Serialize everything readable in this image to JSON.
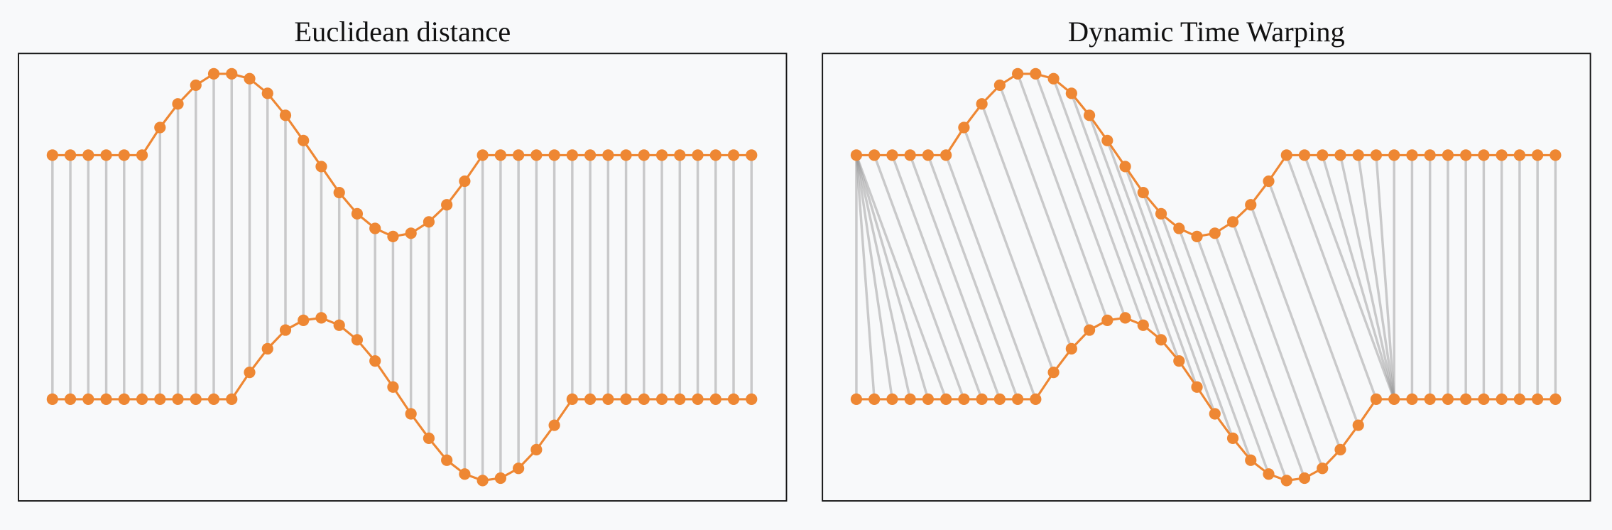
{
  "chart_data": [
    {
      "type": "line",
      "title": "Euclidean distance",
      "color": "#ee8733",
      "link_color": "#9a9a9a",
      "ylim": [
        -1.25,
        4.25
      ],
      "series": [
        {
          "values": [
            3,
            3,
            3,
            3,
            3,
            3,
            3.34,
            3.63,
            3.86,
            4.0,
            4.0,
            3.94,
            3.76,
            3.49,
            3.18,
            2.86,
            2.54,
            2.28,
            2.1,
            2.0,
            2.04,
            2.18,
            2.39,
            2.68,
            3,
            3,
            3,
            3,
            3,
            3,
            3,
            3,
            3,
            3,
            3,
            3,
            3,
            3,
            3,
            3
          ]
        },
        {
          "values": [
            0,
            0,
            0,
            0,
            0,
            0,
            0,
            0,
            0,
            0,
            0,
            0.33,
            0.62,
            0.85,
            0.97,
            1.0,
            0.91,
            0.73,
            0.47,
            0.15,
            -0.18,
            -0.48,
            -0.75,
            -0.92,
            -1.0,
            -0.97,
            -0.85,
            -0.62,
            -0.32,
            0,
            0,
            0,
            0,
            0,
            0,
            0,
            0,
            0,
            0,
            0
          ]
        }
      ],
      "path": [
        [
          0,
          0
        ],
        [
          1,
          1
        ],
        [
          2,
          2
        ],
        [
          3,
          3
        ],
        [
          4,
          4
        ],
        [
          5,
          5
        ],
        [
          6,
          6
        ],
        [
          7,
          7
        ],
        [
          8,
          8
        ],
        [
          9,
          9
        ],
        [
          10,
          10
        ],
        [
          11,
          11
        ],
        [
          12,
          12
        ],
        [
          13,
          13
        ],
        [
          14,
          14
        ],
        [
          15,
          15
        ],
        [
          16,
          16
        ],
        [
          17,
          17
        ],
        [
          18,
          18
        ],
        [
          19,
          19
        ],
        [
          20,
          20
        ],
        [
          21,
          21
        ],
        [
          22,
          22
        ],
        [
          23,
          23
        ],
        [
          24,
          24
        ],
        [
          25,
          25
        ],
        [
          26,
          26
        ],
        [
          27,
          27
        ],
        [
          28,
          28
        ],
        [
          29,
          29
        ],
        [
          30,
          30
        ],
        [
          31,
          31
        ],
        [
          32,
          32
        ],
        [
          33,
          33
        ],
        [
          34,
          34
        ],
        [
          35,
          35
        ],
        [
          36,
          36
        ],
        [
          37,
          37
        ],
        [
          38,
          38
        ],
        [
          39,
          39
        ]
      ]
    },
    {
      "type": "line",
      "title": "Dynamic Time Warping",
      "color": "#ee8733",
      "link_color": "#9a9a9a",
      "ylim": [
        -1.25,
        4.25
      ],
      "series": [
        {
          "values": [
            3,
            3,
            3,
            3,
            3,
            3,
            3.34,
            3.63,
            3.86,
            4.0,
            4.0,
            3.94,
            3.76,
            3.49,
            3.18,
            2.86,
            2.54,
            2.28,
            2.1,
            2.0,
            2.04,
            2.18,
            2.39,
            2.68,
            3,
            3,
            3,
            3,
            3,
            3,
            3,
            3,
            3,
            3,
            3,
            3,
            3,
            3,
            3,
            3
          ]
        },
        {
          "values": [
            0,
            0,
            0,
            0,
            0,
            0,
            0,
            0,
            0,
            0,
            0,
            0.33,
            0.62,
            0.85,
            0.97,
            1.0,
            0.91,
            0.73,
            0.47,
            0.15,
            -0.18,
            -0.48,
            -0.75,
            -0.92,
            -1.0,
            -0.97,
            -0.85,
            -0.62,
            -0.32,
            0,
            0,
            0,
            0,
            0,
            0,
            0,
            0,
            0,
            0,
            0
          ]
        }
      ],
      "path": [
        [
          0,
          0
        ],
        [
          0,
          1
        ],
        [
          0,
          2
        ],
        [
          0,
          3
        ],
        [
          0,
          4
        ],
        [
          0,
          5
        ],
        [
          1,
          6
        ],
        [
          2,
          7
        ],
        [
          3,
          8
        ],
        [
          4,
          9
        ],
        [
          5,
          10
        ],
        [
          6,
          11
        ],
        [
          7,
          12
        ],
        [
          8,
          13
        ],
        [
          9,
          14
        ],
        [
          10,
          15
        ],
        [
          11,
          16
        ],
        [
          12,
          17
        ],
        [
          13,
          18
        ],
        [
          14,
          19
        ],
        [
          15,
          20
        ],
        [
          16,
          21
        ],
        [
          17,
          22
        ],
        [
          18,
          23
        ],
        [
          19,
          24
        ],
        [
          20,
          25
        ],
        [
          21,
          26
        ],
        [
          22,
          27
        ],
        [
          23,
          28
        ],
        [
          24,
          29
        ],
        [
          25,
          30
        ],
        [
          26,
          30
        ],
        [
          27,
          30
        ],
        [
          28,
          30
        ],
        [
          29,
          30
        ],
        [
          30,
          30
        ],
        [
          31,
          31
        ],
        [
          32,
          32
        ],
        [
          33,
          33
        ],
        [
          34,
          34
        ],
        [
          35,
          35
        ],
        [
          36,
          36
        ],
        [
          37,
          37
        ],
        [
          38,
          38
        ],
        [
          39,
          39
        ]
      ]
    }
  ]
}
